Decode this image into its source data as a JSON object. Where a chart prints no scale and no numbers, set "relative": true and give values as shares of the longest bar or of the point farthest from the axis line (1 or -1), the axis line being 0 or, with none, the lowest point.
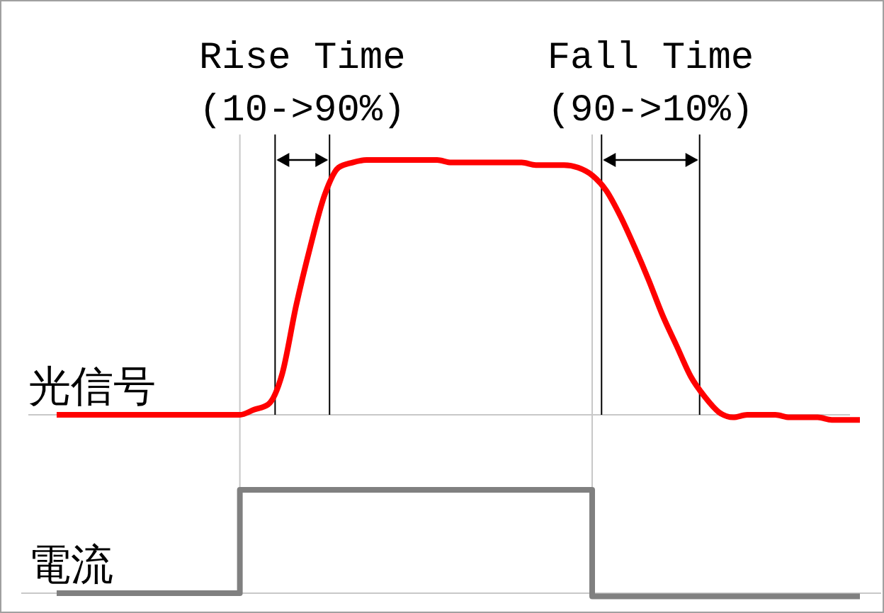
{
  "chart_data": [
    {
      "type": "line",
      "relative": true,
      "categories": [
        null,
        null,
        null,
        null,
        null,
        null,
        null,
        null,
        null,
        null,
        null,
        null,
        null,
        null,
        null,
        null,
        null,
        null,
        null,
        null,
        null,
        null,
        null,
        null,
        null,
        null,
        null,
        null,
        null,
        null,
        null,
        null,
        null,
        null,
        null,
        null,
        null,
        null,
        null,
        null,
        null,
        null,
        null,
        null,
        null,
        null,
        null,
        null,
        null,
        null,
        null,
        null,
        null,
        null,
        null,
        null,
        null,
        null
      ],
      "series": [
        {
          "name": "光信号",
          "color": "#ff0000",
          "values": [
            0,
            0,
            0,
            0,
            0,
            0,
            0,
            0,
            0,
            0,
            0,
            0,
            0,
            0,
            0.02,
            0.04,
            0.16,
            0.43,
            0.66,
            0.86,
            0.97,
            0.99,
            1,
            1,
            1,
            1,
            1,
            1,
            0.99,
            0.99,
            0.99,
            0.99,
            0.99,
            0.99,
            0.98,
            0.98,
            0.98,
            0.97,
            0.94,
            0.88,
            0.78,
            0.66,
            0.53,
            0.39,
            0.27,
            0.15,
            0.07,
            0.01,
            -0.01,
            0,
            0,
            0,
            -0.01,
            -0.01,
            -0.01,
            -0.02,
            -0.02,
            -0.02
          ]
        }
      ],
      "annotations": [
        "Rise Time\n(10->90%)",
        "Fall Time\n(90->10%)"
      ]
    },
    {
      "type": "step",
      "relative": true,
      "categories": [
        null,
        null,
        null,
        null,
        null,
        null,
        null,
        null,
        null,
        null,
        null,
        null,
        null,
        null,
        null,
        null,
        null,
        null,
        null,
        null,
        null,
        null,
        null,
        null,
        null,
        null,
        null,
        null,
        null,
        null,
        null,
        null,
        null,
        null,
        null,
        null,
        null,
        null,
        null,
        null,
        null,
        null,
        null,
        null,
        null,
        null,
        null,
        null,
        null,
        null,
        null,
        null,
        null,
        null,
        null,
        null,
        null,
        null
      ],
      "series": [
        {
          "name": "電流",
          "color": "#808080",
          "values": [
            0,
            0,
            0,
            0,
            0,
            0,
            0,
            0,
            0,
            0,
            0,
            0,
            0,
            1,
            1,
            1,
            1,
            1,
            1,
            1,
            1,
            1,
            1,
            1,
            1,
            1,
            1,
            1,
            1,
            1,
            1,
            1,
            1,
            1,
            1,
            1,
            1,
            1,
            -0.03,
            -0.03,
            -0.03,
            -0.03,
            -0.03,
            -0.03,
            -0.03,
            -0.03,
            -0.03,
            -0.03,
            -0.03,
            -0.03,
            -0.03,
            -0.03,
            -0.03,
            -0.03,
            -0.03,
            -0.03,
            -0.03,
            -0.03
          ]
        }
      ]
    }
  ]
}
